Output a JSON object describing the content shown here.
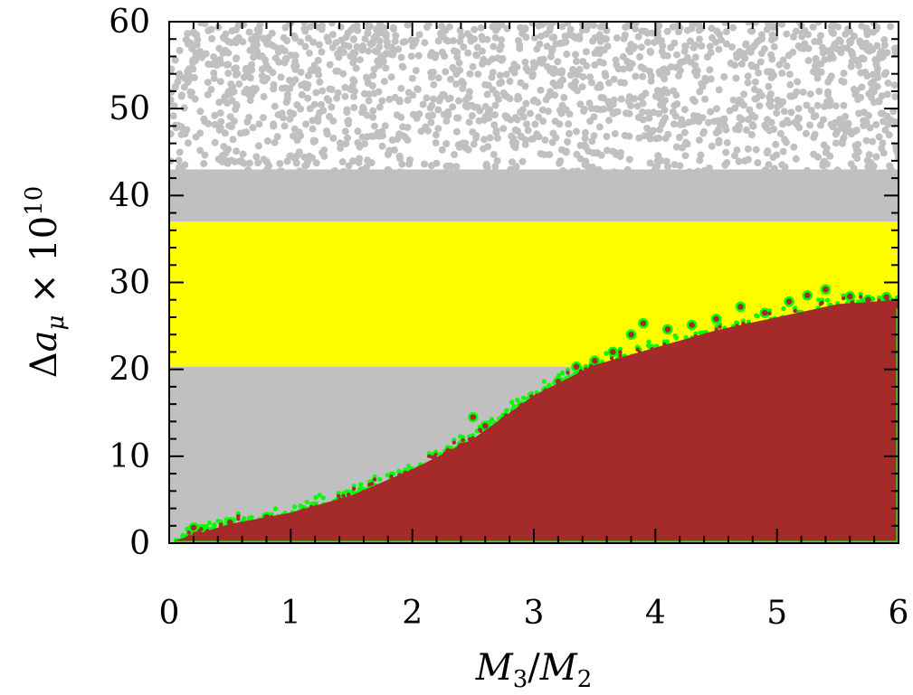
{
  "chart_data": {
    "type": "scatter",
    "title": "",
    "xlabel": {
      "main": "M",
      "sub1": "3",
      "slash": "/",
      "main2": "M",
      "sub2": "2"
    },
    "ylabel": {
      "delta": "Δ",
      "a": "a",
      "mu": "μ",
      "times": " × 10",
      "exp": "10"
    },
    "xlim": [
      0,
      6
    ],
    "ylim": [
      0,
      60
    ],
    "xticks": [
      "0",
      "1",
      "2",
      "3",
      "4",
      "5",
      "6"
    ],
    "yticks": [
      "0",
      "10",
      "20",
      "30",
      "40",
      "50",
      "60"
    ],
    "grid": false,
    "legend": "none",
    "colors": {
      "gray": "#c0c0c0",
      "yellow": "#ffff00",
      "brown": "#a52a2a",
      "green": "#00ff00",
      "frame": "#000000"
    },
    "bands": [
      {
        "name": "",
        "color": "yellow",
        "y": [
          20.3,
          37.0
        ]
      }
    ],
    "series": [
      {
        "color": "gray",
        "x": [
          0,
          6
        ],
        "y_dense_max": 43,
        "y_max": 60
      },
      {
        "color": "brown",
        "x_edge": [
          0.05,
          0.5,
          1.0,
          1.5,
          2.0,
          2.5,
          3.0,
          3.5,
          4.0,
          4.5,
          5.0,
          5.5,
          6.0
        ],
        "y_edge": [
          0.3,
          2.2,
          3.5,
          5.5,
          8.5,
          12.0,
          17.0,
          20.5,
          22.5,
          24.5,
          26.0,
          27.5,
          28.0
        ]
      },
      {
        "color": "green",
        "x": [
          0.2,
          0.5,
          0.8,
          1.1,
          1.4,
          1.7,
          2.0,
          2.3,
          2.5,
          2.6,
          2.75,
          2.9,
          3.1,
          3.2,
          3.35,
          3.5,
          3.65,
          3.8,
          3.9,
          4.1,
          4.3,
          4.5,
          4.7,
          4.9,
          5.1,
          5.25,
          5.4,
          5.6,
          5.75,
          5.9
        ],
        "y": [
          1.8,
          2.4,
          3.0,
          3.6,
          4.8,
          6.0,
          8.2,
          10.5,
          14.5,
          13.5,
          14.2,
          15.8,
          17.5,
          18.6,
          20.3,
          21.0,
          22.0,
          24.0,
          25.3,
          24.6,
          25.1,
          25.8,
          27.2,
          26.5,
          27.8,
          28.5,
          29.2,
          28.4,
          28.0,
          28.3
        ]
      }
    ]
  }
}
